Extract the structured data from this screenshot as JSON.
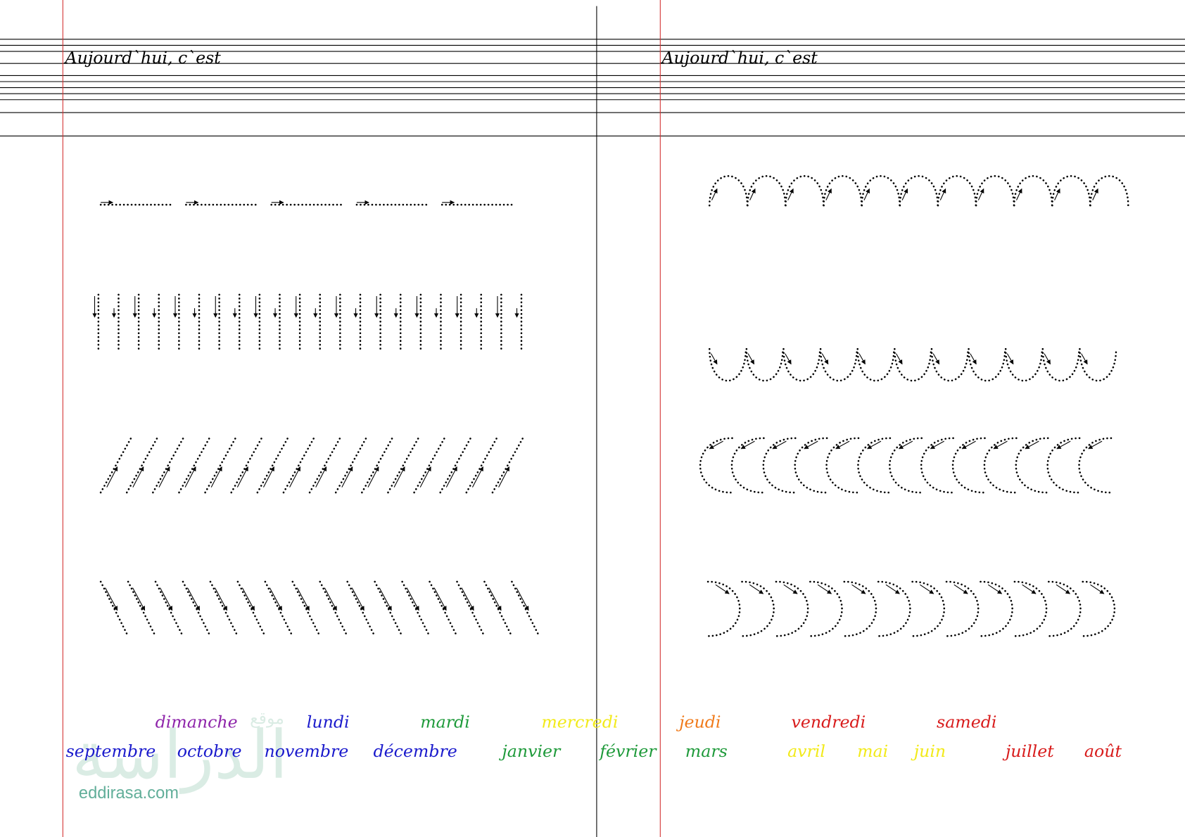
{
  "header": {
    "left_title": "Aujourd`hui, c`est",
    "right_title": "Aujourd`hui, c`est"
  },
  "days": [
    {
      "text": "dimanche",
      "color": "#8e24aa"
    },
    {
      "text": "lundi",
      "color": "#1a1acc"
    },
    {
      "text": "mardi",
      "color": "#1e9a3a"
    },
    {
      "text": "mercredi",
      "color": "#f2ea1a"
    },
    {
      "text": "jeudi",
      "color": "#f07a1a"
    },
    {
      "text": "vendredi",
      "color": "#d81b1b"
    },
    {
      "text": "samedi",
      "color": "#d81b1b"
    }
  ],
  "months": [
    {
      "text": "septembre",
      "color": "#1a1acc"
    },
    {
      "text": "octobre",
      "color": "#1a1acc"
    },
    {
      "text": "novembre",
      "color": "#1a1acc"
    },
    {
      "text": "décembre",
      "color": "#1a1acc"
    },
    {
      "text": "janvier",
      "color": "#1e9a3a"
    },
    {
      "text": "février",
      "color": "#1e9a3a"
    },
    {
      "text": "mars",
      "color": "#1e9a3a"
    },
    {
      "text": "avril",
      "color": "#f2ea1a"
    },
    {
      "text": "mai",
      "color": "#f2ea1a"
    },
    {
      "text": "juin",
      "color": "#f2ea1a"
    },
    {
      "text": "juillet",
      "color": "#d81b1b"
    },
    {
      "text": "août",
      "color": "#d81b1b"
    }
  ],
  "watermark": {
    "arabic": "الدراسة",
    "prefix": "موقع",
    "site": "eddirasa.com"
  }
}
